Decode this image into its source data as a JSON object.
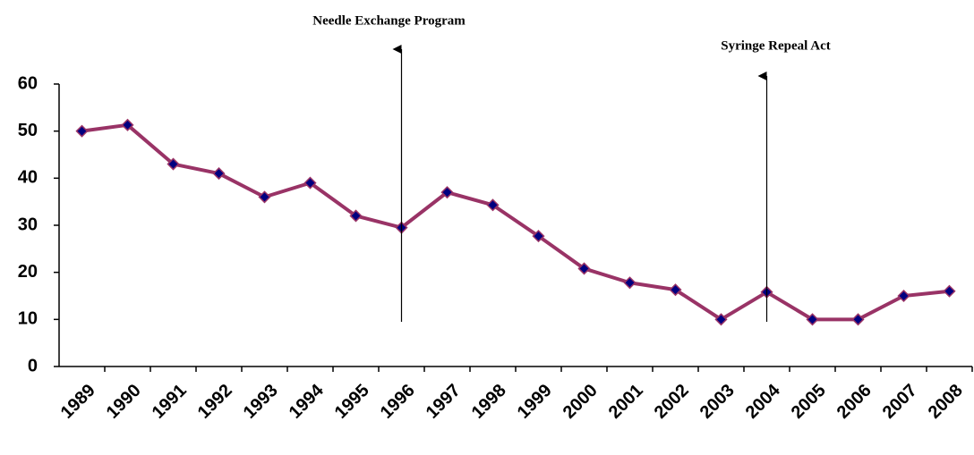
{
  "chart_data": {
    "type": "line",
    "categories": [
      "1989",
      "1990",
      "1991",
      "1992",
      "1993",
      "1994",
      "1995",
      "1996",
      "1997",
      "1998",
      "1999",
      "2000",
      "2001",
      "2002",
      "2003",
      "2004",
      "2005",
      "2006",
      "2007",
      "2008"
    ],
    "series": [
      {
        "color": "#993366",
        "marker_color": "#000080",
        "values": [
          50,
          51.3,
          43,
          41,
          36,
          39,
          32,
          29.5,
          37,
          34.3,
          27.7,
          20.8,
          17.8,
          16.3,
          10,
          15.8,
          10,
          10,
          15,
          16
        ]
      }
    ],
    "ylim": [
      0,
      60
    ],
    "yticks": [
      0,
      10,
      20,
      30,
      40,
      50,
      60
    ],
    "grid": false,
    "annotations": [
      {
        "text": "Needle Exchange Program",
        "at": "1996"
      },
      {
        "text": "Syringe Repeal Act",
        "at": "2004"
      }
    ]
  }
}
